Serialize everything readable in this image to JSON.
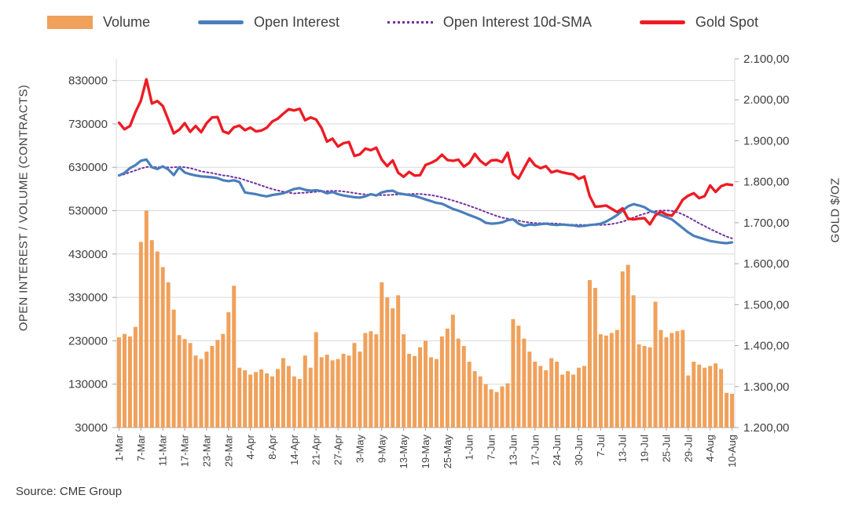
{
  "chart_data": {
    "type": "combo",
    "x": [
      "1-Mar",
      "2-Mar",
      "3-Mar",
      "4-Mar",
      "7-Mar",
      "8-Mar",
      "9-Mar",
      "10-Mar",
      "11-Mar",
      "14-Mar",
      "15-Mar",
      "16-Mar",
      "17-Mar",
      "18-Mar",
      "21-Mar",
      "22-Mar",
      "23-Mar",
      "24-Mar",
      "25-Mar",
      "28-Mar",
      "29-Mar",
      "30-Mar",
      "31-Mar",
      "1-Apr",
      "4-Apr",
      "5-Apr",
      "6-Apr",
      "7-Apr",
      "8-Apr",
      "11-Apr",
      "12-Apr",
      "13-Apr",
      "14-Apr",
      "18-Apr",
      "19-Apr",
      "20-Apr",
      "21-Apr",
      "22-Apr",
      "25-Apr",
      "26-Apr",
      "27-Apr",
      "28-Apr",
      "29-Apr",
      "2-May",
      "3-May",
      "4-May",
      "5-May",
      "6-May",
      "9-May",
      "10-May",
      "11-May",
      "12-May",
      "13-May",
      "16-May",
      "17-May",
      "18-May",
      "19-May",
      "20-May",
      "23-May",
      "24-May",
      "25-May",
      "26-May",
      "27-May",
      "31-May",
      "1-Jun",
      "2-Jun",
      "3-Jun",
      "6-Jun",
      "7-Jun",
      "8-Jun",
      "9-Jun",
      "10-Jun",
      "13-Jun",
      "14-Jun",
      "15-Jun",
      "16-Jun",
      "17-Jun",
      "21-Jun",
      "22-Jun",
      "23-Jun",
      "24-Jun",
      "27-Jun",
      "28-Jun",
      "29-Jun",
      "30-Jun",
      "1-Jul",
      "5-Jul",
      "6-Jul",
      "7-Jul",
      "8-Jul",
      "11-Jul",
      "12-Jul",
      "13-Jul",
      "14-Jul",
      "15-Jul",
      "18-Jul",
      "19-Jul",
      "20-Jul",
      "21-Jul",
      "22-Jul",
      "25-Jul",
      "26-Jul",
      "27-Jul",
      "28-Jul",
      "29-Jul",
      "1-Aug",
      "2-Aug",
      "3-Aug",
      "4-Aug",
      "5-Aug",
      "8-Aug",
      "9-Aug",
      "10-Aug"
    ],
    "x_tick_every": 4,
    "series": [
      {
        "name": "Volume",
        "type": "bar",
        "axis": "left",
        "color": "#F0A15B",
        "values": [
          238000,
          246000,
          240000,
          262000,
          458000,
          530000,
          462000,
          436000,
          400000,
          365000,
          302000,
          243000,
          234000,
          225000,
          196000,
          188000,
          205000,
          218000,
          232000,
          246000,
          296000,
          357000,
          168000,
          162000,
          152000,
          158000,
          164000,
          155000,
          148000,
          165000,
          190000,
          172000,
          148000,
          142000,
          196000,
          168000,
          250000,
          192000,
          198000,
          185000,
          188000,
          200000,
          196000,
          225000,
          205000,
          248000,
          252000,
          245000,
          365000,
          330000,
          305000,
          335000,
          245000,
          200000,
          195000,
          215000,
          230000,
          192000,
          188000,
          240000,
          258000,
          290000,
          235000,
          218000,
          182000,
          160000,
          148000,
          130000,
          118000,
          112000,
          125000,
          132000,
          280000,
          265000,
          235000,
          205000,
          182000,
          172000,
          162000,
          190000,
          182000,
          152000,
          160000,
          152000,
          168000,
          172000,
          370000,
          352000,
          245000,
          242000,
          248000,
          255000,
          390000,
          405000,
          335000,
          222000,
          218000,
          215000,
          320000,
          255000,
          238000,
          248000,
          252000,
          255000,
          150000,
          182000,
          175000,
          168000,
          172000,
          178000,
          165000,
          110000,
          108000
        ]
      },
      {
        "name": "Open Interest",
        "type": "line",
        "axis": "left",
        "color": "#4A7EBB",
        "values": [
          611000,
          617000,
          628000,
          635000,
          645000,
          648000,
          630000,
          626000,
          632000,
          625000,
          612000,
          630000,
          618000,
          614000,
          611000,
          609000,
          608000,
          607000,
          605000,
          600000,
          598000,
          600000,
          596000,
          572000,
          570000,
          568000,
          565000,
          563000,
          566000,
          568000,
          570000,
          575000,
          580000,
          582000,
          578000,
          576000,
          577000,
          575000,
          570000,
          573000,
          568000,
          565000,
          563000,
          561000,
          560000,
          563000,
          568000,
          565000,
          572000,
          575000,
          576000,
          570000,
          568000,
          566000,
          564000,
          560000,
          556000,
          552000,
          548000,
          546000,
          540000,
          534000,
          530000,
          525000,
          520000,
          515000,
          510000,
          502000,
          500000,
          501000,
          503000,
          508000,
          510000,
          500000,
          495000,
          498000,
          497000,
          499000,
          500000,
          498000,
          497000,
          498000,
          497000,
          496000,
          494000,
          495000,
          497000,
          498000,
          500000,
          505000,
          512000,
          520000,
          530000,
          540000,
          545000,
          542000,
          538000,
          530000,
          525000,
          520000,
          515000,
          510000,
          500000,
          490000,
          480000,
          472000,
          468000,
          464000,
          460000,
          458000,
          456000,
          455000,
          457000
        ]
      },
      {
        "name": "Open Interest 10d-SMA",
        "type": "line-dotted",
        "axis": "left",
        "color": "#7030A0",
        "derived_from": "Open Interest",
        "window": 10
      },
      {
        "name": "Gold Spot",
        "type": "line",
        "axis": "right",
        "color": "#ED1C24",
        "values": [
          1944,
          1928,
          1936,
          1970,
          1998,
          2050,
          1991,
          1997,
          1985,
          1951,
          1918,
          1927,
          1943,
          1922,
          1936,
          1921,
          1943,
          1957,
          1958,
          1923,
          1918,
          1933,
          1937,
          1926,
          1932,
          1923,
          1925,
          1932,
          1947,
          1954,
          1966,
          1977,
          1974,
          1978,
          1950,
          1957,
          1952,
          1931,
          1898,
          1905,
          1886,
          1894,
          1897,
          1863,
          1867,
          1881,
          1877,
          1883,
          1854,
          1838,
          1852,
          1822,
          1812,
          1824,
          1815,
          1816,
          1841,
          1846,
          1853,
          1866,
          1853,
          1851,
          1854,
          1837,
          1846,
          1868,
          1851,
          1841,
          1852,
          1853,
          1848,
          1871,
          1819,
          1808,
          1833,
          1857,
          1840,
          1833,
          1838,
          1823,
          1827,
          1823,
          1820,
          1818,
          1807,
          1813,
          1765,
          1739,
          1740,
          1742,
          1734,
          1726,
          1735,
          1710,
          1708,
          1710,
          1711,
          1696,
          1718,
          1727,
          1720,
          1717,
          1734,
          1756,
          1766,
          1772,
          1760,
          1765,
          1791,
          1775,
          1789,
          1794,
          1792
        ]
      }
    ],
    "ylabel_left": "OPEN INTEREST / VOLUME (CONTRACTS)",
    "ylabel_right": "GOLD $/OZ",
    "left_axis": {
      "min": 30000,
      "max": 880000,
      "ticks": [
        830000,
        730000,
        630000,
        530000,
        430000,
        330000,
        230000,
        130000,
        30000
      ]
    },
    "right_axis": {
      "min": 1200,
      "max": 2100,
      "tick_values": [
        2100,
        2000,
        1900,
        1800,
        1700,
        1600,
        1500,
        1400,
        1300,
        1200
      ],
      "tick_labels": [
        "2.100,00",
        "2.000,00",
        "1.900,00",
        "1.800,00",
        "1.700,00",
        "1.600,00",
        "1.500,00",
        "1.400,00",
        "1.300,00",
        "1.200,00"
      ]
    },
    "grid_color": "#D9D9D9",
    "legend_position": "top",
    "source": "Source: CME Group"
  }
}
